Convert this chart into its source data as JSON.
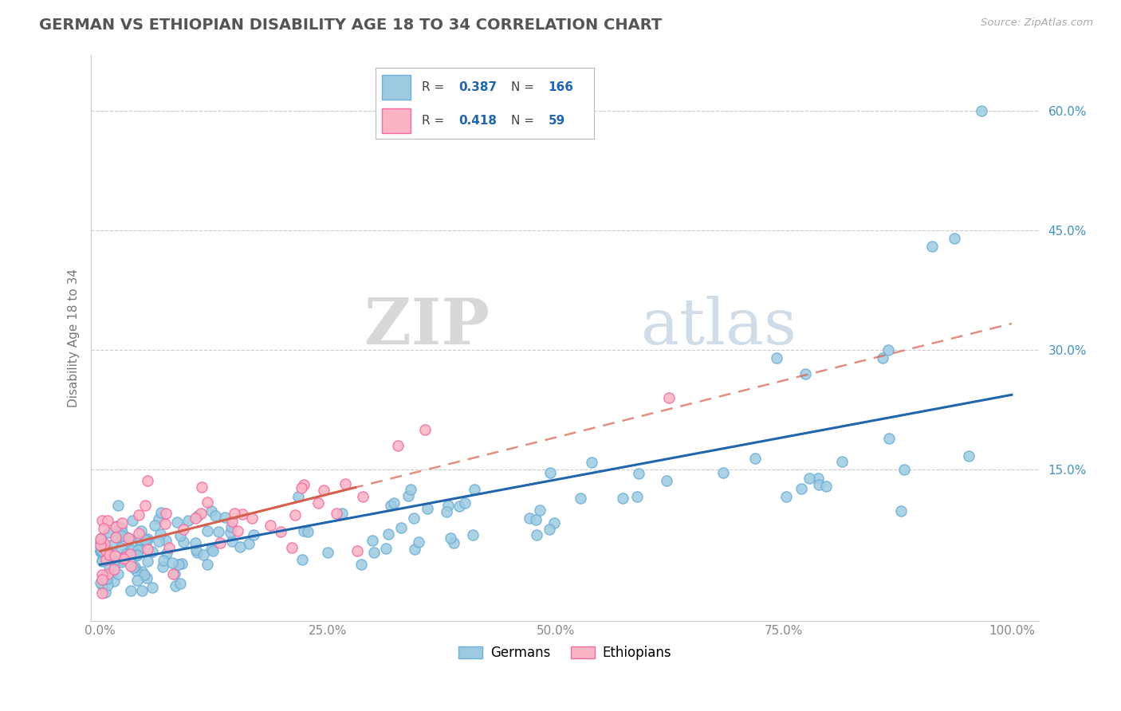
{
  "title": "GERMAN VS ETHIOPIAN DISABILITY AGE 18 TO 34 CORRELATION CHART",
  "source": "Source: ZipAtlas.com",
  "ylabel": "Disability Age 18 to 34",
  "ytick_labels": [
    "15.0%",
    "30.0%",
    "45.0%",
    "60.0%"
  ],
  "ytick_positions": [
    0.15,
    0.3,
    0.45,
    0.6
  ],
  "xtick_labels": [
    "0.0%",
    "25.0%",
    "50.0%",
    "75.0%",
    "100.0%"
  ],
  "xtick_positions": [
    0.0,
    0.25,
    0.5,
    0.75,
    1.0
  ],
  "xlim": [
    -0.01,
    1.03
  ],
  "ylim": [
    -0.04,
    0.67
  ],
  "german_R": "0.387",
  "german_N": "166",
  "ethiopian_R": "0.418",
  "ethiopian_N": "59",
  "german_color": "#9ecae1",
  "german_edge_color": "#6baed6",
  "ethiopian_color": "#fbb4c4",
  "ethiopian_edge_color": "#f768a1",
  "german_line_color": "#2166ac",
  "ethiopian_line_color": "#d6604d",
  "ethiopian_line_dashed": true,
  "background_color": "#ffffff",
  "grid_color": "#cccccc",
  "title_color": "#555555",
  "right_tick_color": "#4393c3",
  "watermark_zip": "ZIP",
  "watermark_atlas": "atlas",
  "legend_box_color": "#ffffff",
  "legend_border_color": "#bbbbbb",
  "bottom_legend_labels": [
    "Germans",
    "Ethiopians"
  ]
}
